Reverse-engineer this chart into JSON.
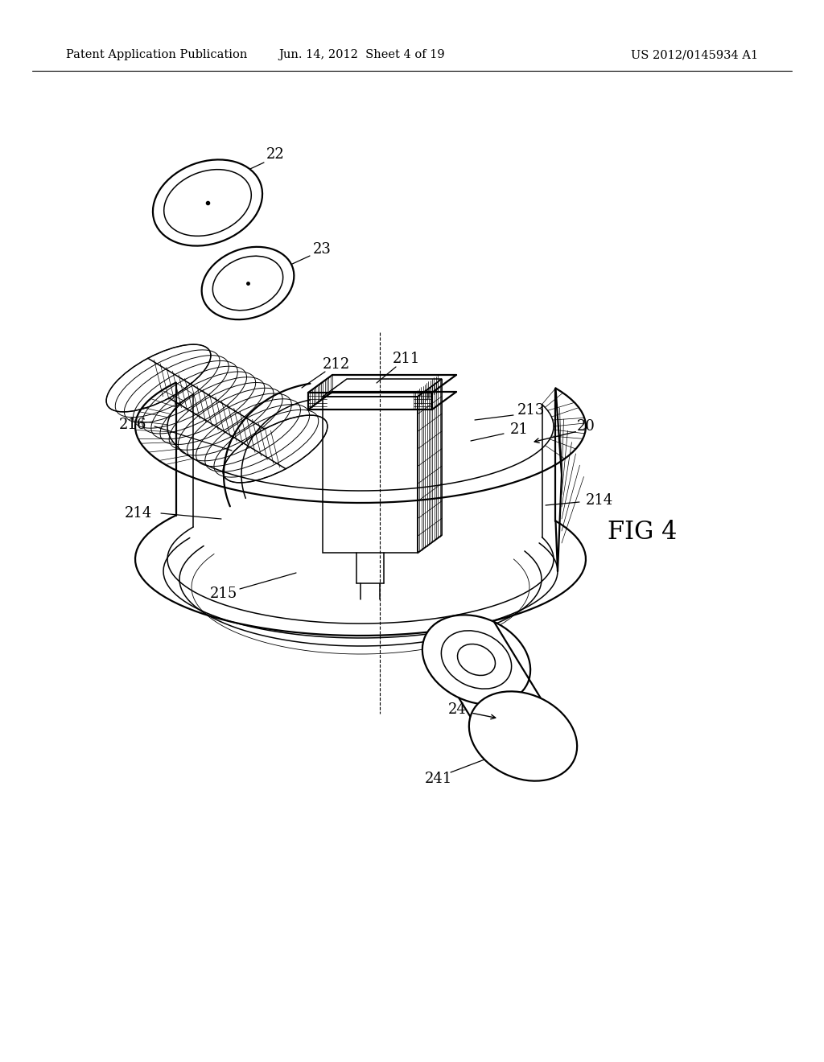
{
  "bg": "#ffffff",
  "header_left": "Patent Application Publication",
  "header_center": "Jun. 14, 2012  Sheet 4 of 19",
  "header_right": "US 2012/0145934 A1",
  "fig_label": "FIG 4",
  "lw_heavy": 1.6,
  "lw_med": 1.1,
  "lw_thin": 0.6,
  "label_fontsize": 13,
  "header_fontsize": 10.5
}
